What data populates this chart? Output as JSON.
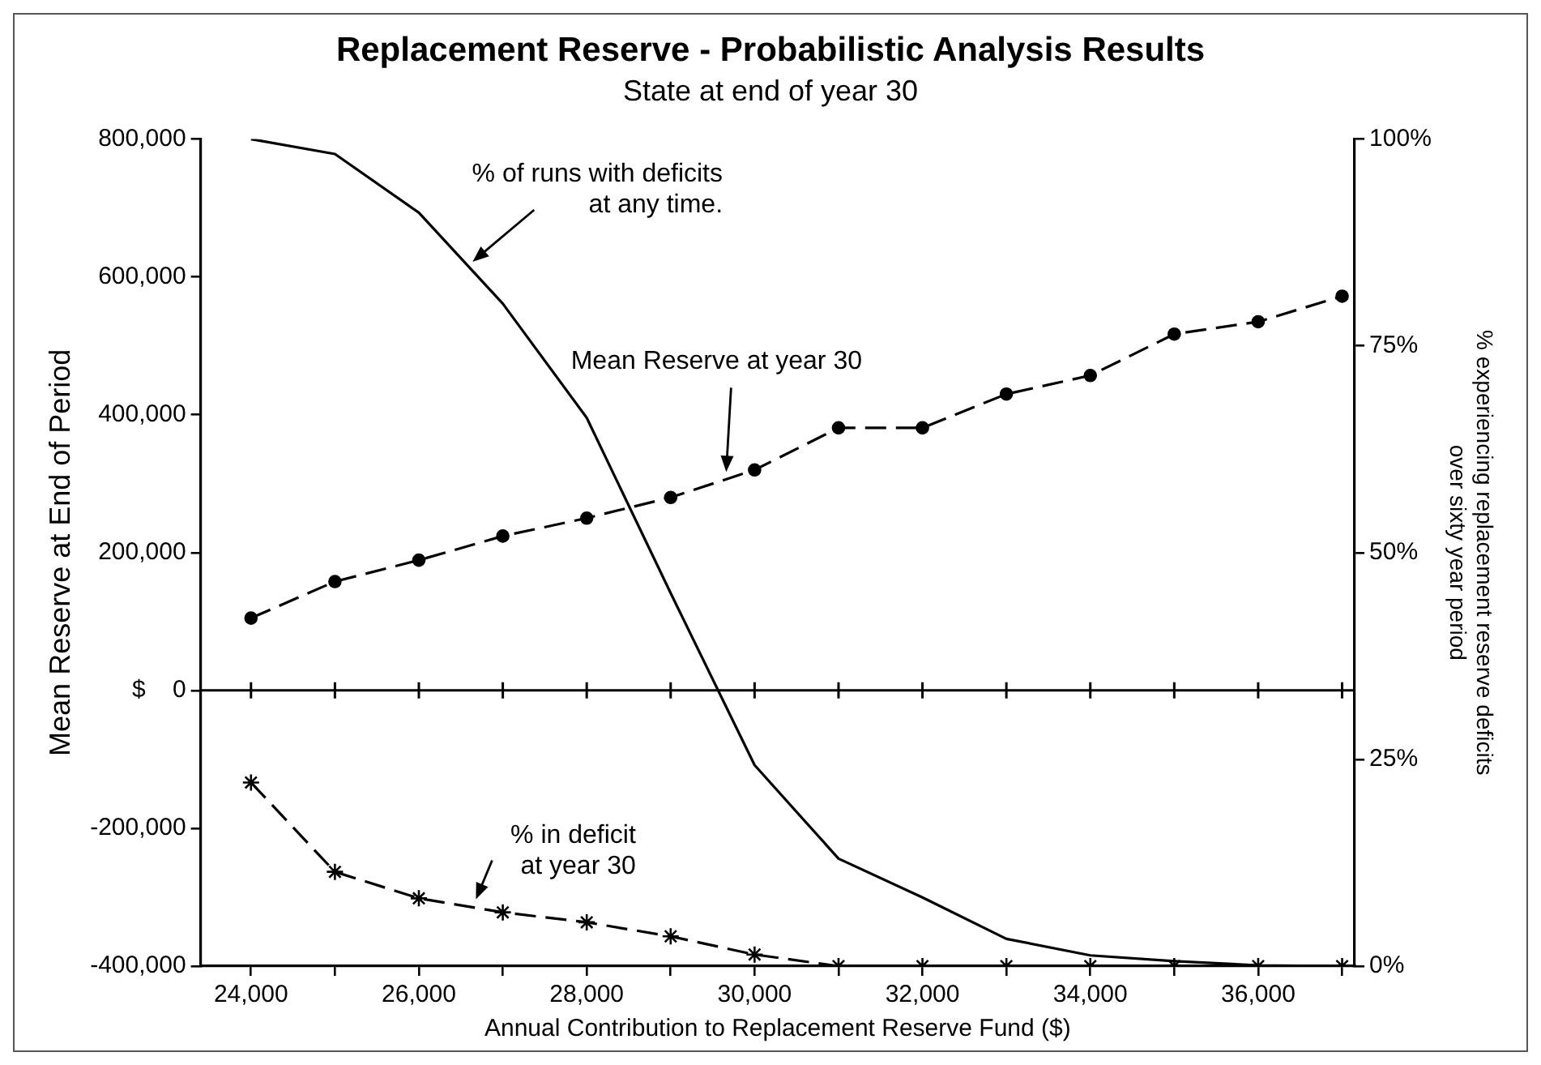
{
  "chart_data": {
    "type": "line",
    "title": "Replacement Reserve - Probabilistic Analysis Results",
    "subtitle": "State at end of year 30",
    "xlabel": "Annual Contribution to Replacement Reserve Fund ($)",
    "ylabel": "Mean Reserve at End of Period",
    "y2label": "% experiencing replacement reserve deficits\nover sixty year period",
    "x": [
      24000,
      25000,
      26000,
      27000,
      28000,
      29000,
      30000,
      31000,
      32000,
      33000,
      34000,
      35000,
      36000,
      37000
    ],
    "series": [
      {
        "name": null,
        "axis": "y2",
        "color": "#000000",
        "marker": "none",
        "line_style": "solid",
        "values": [
          100,
          98.2,
          91.1,
          80.1,
          66.3,
          45.1,
          24.3,
          13.0,
          8.3,
          3.3,
          1.3,
          0.6,
          0.1,
          0
        ]
      },
      {
        "name": null,
        "axis": "y",
        "color": "#000000",
        "marker": "circle",
        "line_style": "dashed",
        "values": [
          105000,
          158000,
          189000,
          224000,
          250000,
          280000,
          320000,
          381000,
          381000,
          430000,
          457000,
          517000,
          535000,
          572000
        ]
      },
      {
        "name": null,
        "axis": "y2",
        "color": "#000000",
        "marker": "cross",
        "line_style": "dashed",
        "values": [
          22.2,
          11.4,
          8.2,
          6.5,
          5.3,
          3.6,
          1.4,
          0,
          0,
          0,
          0,
          0,
          0,
          0
        ]
      }
    ],
    "xlim": [
      23400,
      37150
    ],
    "xticks": [
      {
        "value": 24000,
        "label": "24,000"
      },
      {
        "value": 25000,
        "label": null
      },
      {
        "value": 26000,
        "label": "26,000"
      },
      {
        "value": 27000,
        "label": null
      },
      {
        "value": 28000,
        "label": "28,000"
      },
      {
        "value": 29000,
        "label": null
      },
      {
        "value": 30000,
        "label": "30,000"
      },
      {
        "value": 31000,
        "label": null
      },
      {
        "value": 32000,
        "label": "32,000"
      },
      {
        "value": 33000,
        "label": null
      },
      {
        "value": 34000,
        "label": "34,000"
      },
      {
        "value": 35000,
        "label": null
      },
      {
        "value": 36000,
        "label": "36,000"
      },
      {
        "value": 37000,
        "label": null
      }
    ],
    "ylim": [
      -400000,
      800000
    ],
    "yticks": [
      {
        "value": -400000,
        "label": "-400,000"
      },
      {
        "value": -200000,
        "label": "-200,000"
      },
      {
        "value": 0,
        "label": "$    0"
      },
      {
        "value": 200000,
        "label": "200,000"
      },
      {
        "value": 400000,
        "label": "400,000"
      },
      {
        "value": 600000,
        "label": "600,000"
      },
      {
        "value": 800000,
        "label": "800,000"
      }
    ],
    "y2lim": [
      0,
      100
    ],
    "y2ticks": [
      {
        "value": 0,
        "label": "0%"
      },
      {
        "value": 25,
        "label": "25%"
      },
      {
        "value": 50,
        "label": "50%"
      },
      {
        "value": 75,
        "label": "75%"
      },
      {
        "value": 100,
        "label": "100%"
      }
    ],
    "ref_lines": [
      {
        "axis": "y",
        "value": 0,
        "color": "#000000",
        "line_style": "solid"
      }
    ],
    "annotations": [
      {
        "text": "% of runs with deficits\nat any time.",
        "x": 26640,
        "y": 622000
      },
      {
        "text": "Mean Reserve at year 30",
        "x": 29662,
        "y": 317000
      },
      {
        "text": "% in deficit\nat year 30",
        "x": 26680,
        "y": -303000
      }
    ],
    "grid": false,
    "legend": false
  }
}
